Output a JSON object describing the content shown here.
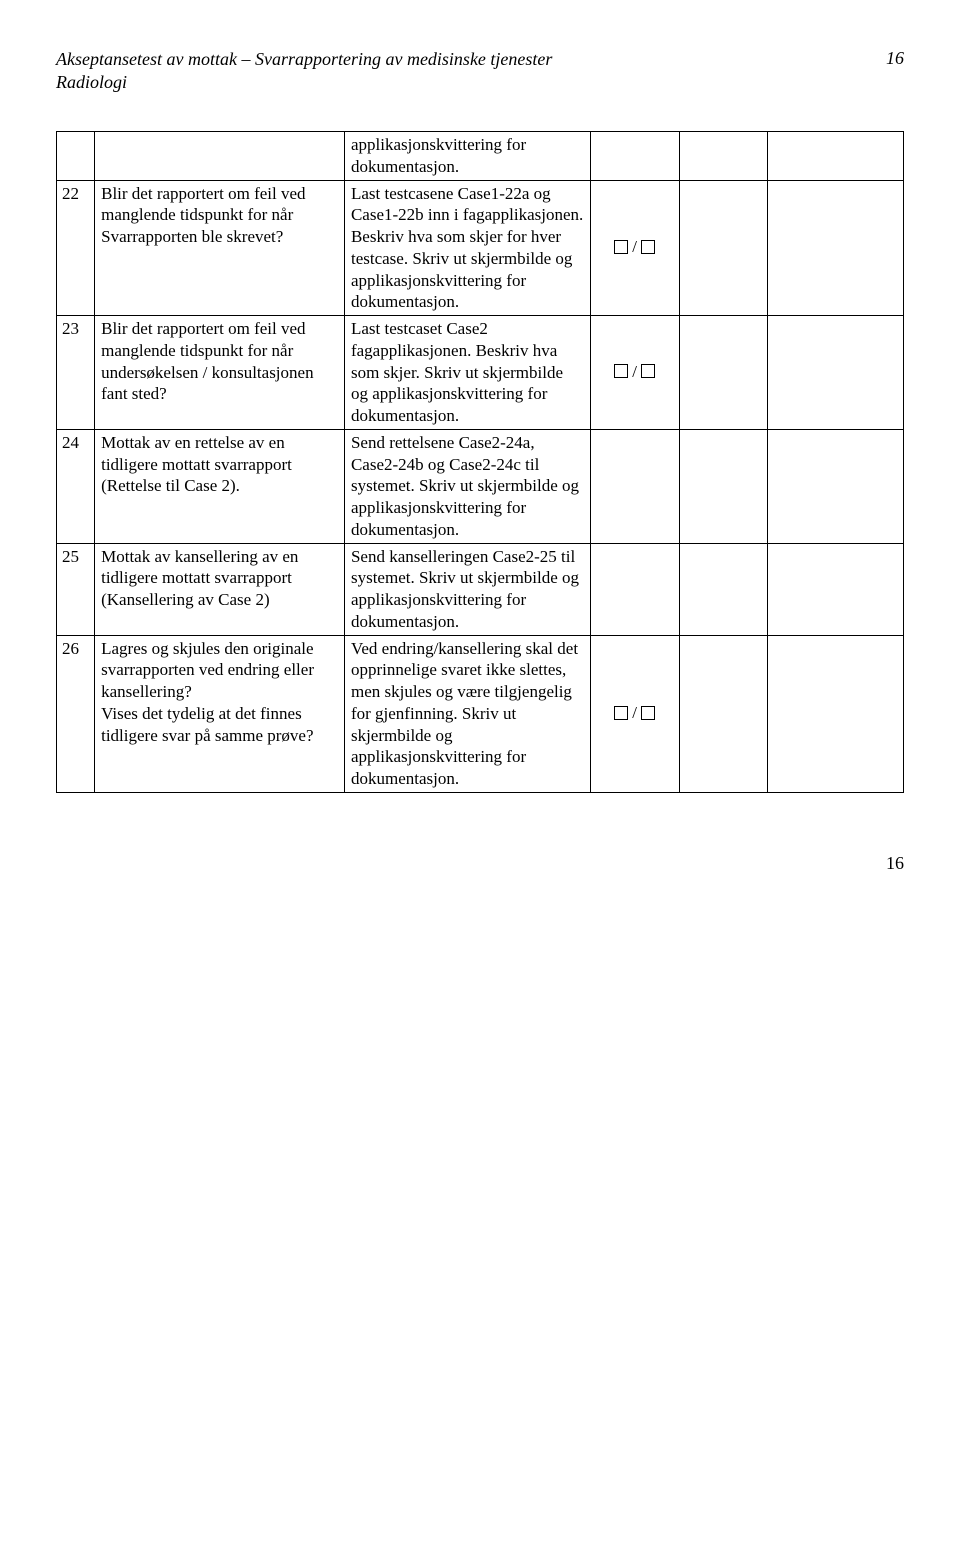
{
  "header": {
    "title_line1": "Akseptansetest av mottak – Svarrapportering av medisinske tjenester",
    "title_line2": "Radiologi",
    "page_top": "16"
  },
  "rows": [
    {
      "num": "",
      "desc": "",
      "action": "applikasjonskvittering for dokumentasjon.",
      "chk": false
    },
    {
      "num": "22",
      "desc": "Blir det rapportert om feil ved manglende tidspunkt for når Svarrapporten ble skrevet?",
      "action": "Last testcasene Case1-22a og Case1-22b inn i fagapplikasjonen. Beskriv hva som skjer for hver testcase. Skriv ut skjermbilde og applikasjonskvittering for dokumentasjon.",
      "chk": true
    },
    {
      "num": "23",
      "desc": "Blir det rapportert om feil ved manglende tidspunkt for når undersøkelsen / konsultasjonen fant sted?",
      "action": "Last testcaset Case2 fagapplikasjonen. Beskriv hva som skjer. Skriv ut skjermbilde og applikasjonskvittering for dokumentasjon.",
      "chk": true
    },
    {
      "num": "24",
      "desc": "Mottak av en rettelse av en tidligere mottatt svarrapport (Rettelse til Case 2).",
      "action": "Send rettelsene Case2-24a, Case2-24b og Case2-24c til systemet. Skriv ut skjermbilde og applikasjonskvittering for dokumentasjon.",
      "chk": false
    },
    {
      "num": "25",
      "desc": "Mottak av kansellering av en tidligere mottatt svarrapport (Kansellering av Case 2)",
      "action": "Send kanselleringen Case2-25 til systemet. Skriv ut skjermbilde og applikasjonskvittering for dokumentasjon.",
      "chk": false
    },
    {
      "num": "26",
      "desc": "Lagres og skjules den originale svarrapporten ved endring eller kansellering?\nVises det tydelig at det finnes tidligere svar på samme prøve?",
      "action": "Ved endring/kansellering skal det opprinnelige svaret ikke slettes, men skjules og være tilgjengelig for gjenfinning. Skriv ut skjermbilde og applikasjonskvittering for dokumentasjon.",
      "chk": true
    }
  ],
  "footer": {
    "page_bottom": "16"
  }
}
